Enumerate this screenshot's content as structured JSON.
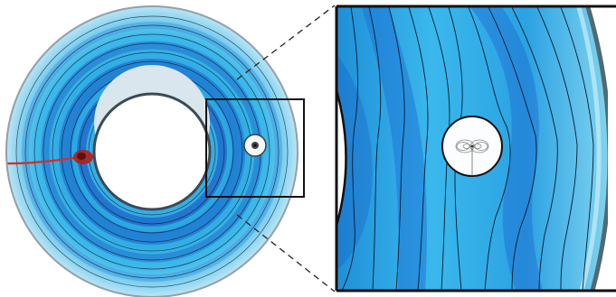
{
  "figure": {
    "panels": [
      "full-annulus-photo",
      "zoomed-detail-photo"
    ],
    "colors": {
      "water_light": "#7fd6f2",
      "water_mid": "#2fb0e6",
      "water_deep": "#1a6fcf",
      "band_dark": "#1d5fc4",
      "streamline": "#0b1a2e",
      "dye_red": "#e02a1a",
      "rim": "#6b7f8f",
      "frame": "#111111"
    },
    "icons": [
      "inner-cylinder",
      "obstacle-disk",
      "dye-streak",
      "zoom-box"
    ]
  }
}
